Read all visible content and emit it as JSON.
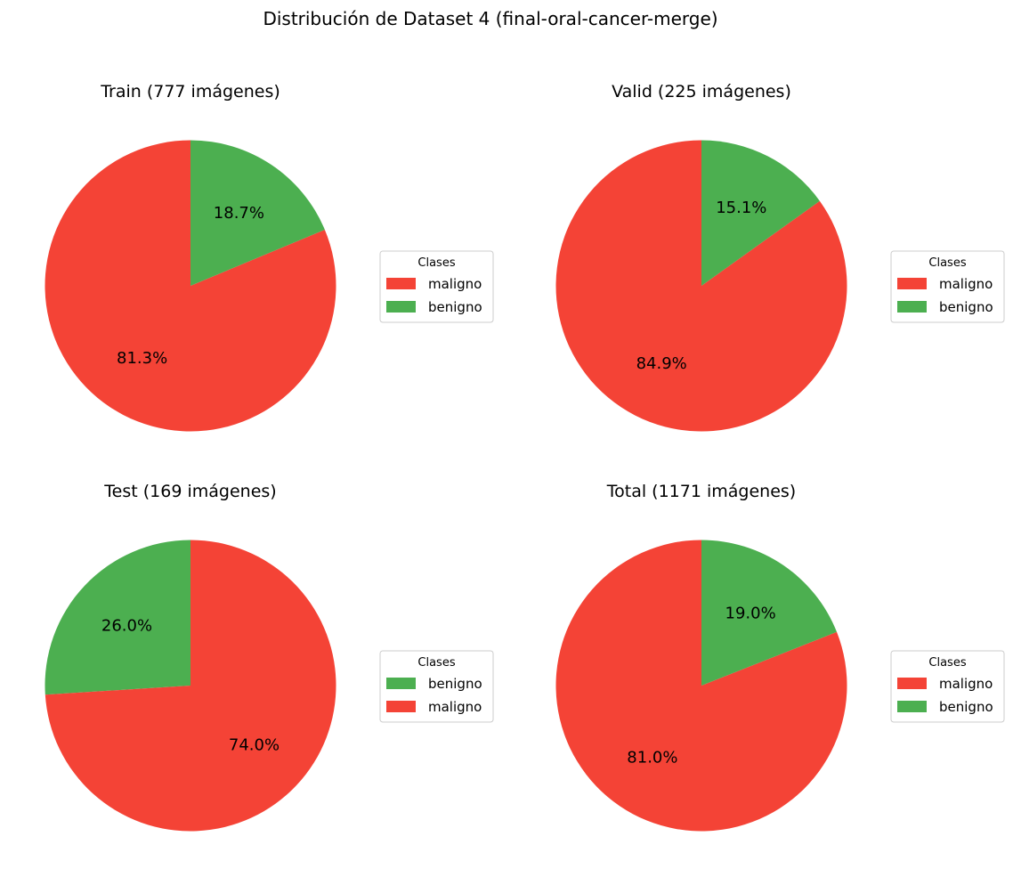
{
  "figure": {
    "title": "Distribución de Dataset 4 (final-oral-cancer-merge)"
  },
  "colors": {
    "maligno": "#f44336",
    "benigno": "#4caf50"
  },
  "chart_data": [
    {
      "type": "pie",
      "title": "Train (777 imágenes)",
      "start_angle_deg": 90,
      "direction": "counterclockwise",
      "slices": [
        {
          "label": "maligno",
          "value": 81.3,
          "pct_label": "81.3%"
        },
        {
          "label": "benigno",
          "value": 18.7,
          "pct_label": "18.7%"
        }
      ],
      "legend": {
        "title": "Clases",
        "entries": [
          "maligno",
          "benigno"
        ],
        "placement": "right"
      }
    },
    {
      "type": "pie",
      "title": "Valid (225 imágenes)",
      "start_angle_deg": 90,
      "direction": "counterclockwise",
      "slices": [
        {
          "label": "maligno",
          "value": 84.9,
          "pct_label": "84.9%"
        },
        {
          "label": "benigno",
          "value": 15.1,
          "pct_label": "15.1%"
        }
      ],
      "legend": {
        "title": "Clases",
        "entries": [
          "maligno",
          "benigno"
        ],
        "placement": "right"
      }
    },
    {
      "type": "pie",
      "title": "Test (169 imágenes)",
      "start_angle_deg": 90,
      "direction": "counterclockwise",
      "slices": [
        {
          "label": "benigno",
          "value": 26.0,
          "pct_label": "26.0%"
        },
        {
          "label": "maligno",
          "value": 74.0,
          "pct_label": "74.0%"
        }
      ],
      "legend": {
        "title": "Clases",
        "entries": [
          "benigno",
          "maligno"
        ],
        "placement": "right"
      }
    },
    {
      "type": "pie",
      "title": "Total (1171 imágenes)",
      "start_angle_deg": 90,
      "direction": "counterclockwise",
      "slices": [
        {
          "label": "maligno",
          "value": 81.0,
          "pct_label": "81.0%"
        },
        {
          "label": "benigno",
          "value": 19.0,
          "pct_label": "19.0%"
        }
      ],
      "legend": {
        "title": "Clases",
        "entries": [
          "maligno",
          "benigno"
        ],
        "placement": "right"
      }
    }
  ]
}
